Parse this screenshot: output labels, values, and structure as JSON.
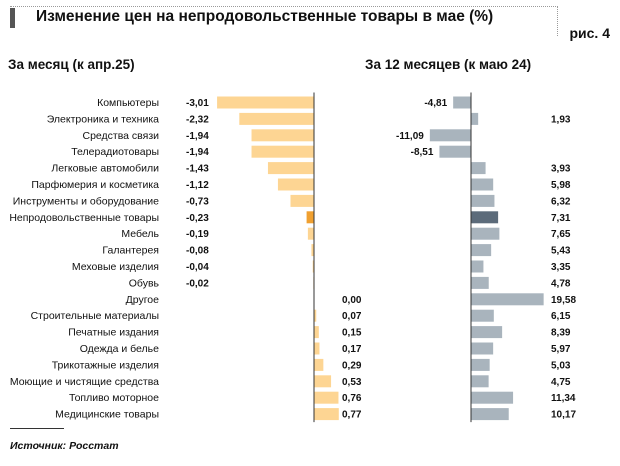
{
  "title": "Изменение цен на непродовольственные товары в мае (%)",
  "figure_label": "рис. 4",
  "source": "Источник: Росстат",
  "colors": {
    "monthly_bar": "#fdd593",
    "monthly_highlight": "#f0a030",
    "yearly_bar": "#a9b4bd",
    "yearly_highlight": "#5c6b7a",
    "axis": "#333333"
  },
  "chart_data": [
    {
      "type": "bar",
      "orientation": "horizontal",
      "title": "За месяц (к апр.25)",
      "highlight_category": "Непродовольственные товары",
      "categories": [
        "Компьютеры",
        "Электроника и техника",
        "Средства связи",
        "Телерадиотовары",
        "Легковые автомобили",
        "Парфюмерия и косметика",
        "Инструменты и оборудование",
        "Непродовольственные товары",
        "Мебель",
        "Галантерея",
        "Меховые изделия",
        "Обувь",
        "Другое",
        "Строительные материалы",
        "Печатные издания",
        "Одежда и белье",
        "Трикотажные изделия",
        "Моющие и чистящие средства",
        "Топливо моторное",
        "Медицинские товары"
      ],
      "values": [
        -3.01,
        -2.32,
        -1.94,
        -1.94,
        -1.43,
        -1.12,
        -0.73,
        -0.23,
        -0.19,
        -0.08,
        -0.04,
        -0.02,
        0.0,
        0.07,
        0.15,
        0.17,
        0.29,
        0.53,
        0.76,
        0.77
      ],
      "labels": [
        "-3,01",
        "-2,32",
        "-1,94",
        "-1,94",
        "-1,43",
        "-1,12",
        "-0,73",
        "-0,23",
        "-0,19",
        "-0,08",
        "-0,04",
        "-0,02",
        "0,00",
        "0,07",
        "0,15",
        "0,17",
        "0,29",
        "0,53",
        "0,76",
        "0,77"
      ]
    },
    {
      "type": "bar",
      "orientation": "horizontal",
      "title": "За 12 месяцев (к маю 24)",
      "highlight_category": "Непродовольственные товары",
      "categories": [
        "Компьютеры",
        "Электроника и техника",
        "Средства связи",
        "Телерадиотовары",
        "Легковые автомобили",
        "Парфюмерия и косметика",
        "Инструменты и оборудование",
        "Непродовольственные товары",
        "Мебель",
        "Галантерея",
        "Меховые изделия",
        "Обувь",
        "Другое",
        "Строительные материалы",
        "Печатные издания",
        "Одежда и белье",
        "Трикотажные изделия",
        "Моющие и чистящие средства",
        "Топливо моторное",
        "Медицинские товары"
      ],
      "values": [
        -4.81,
        1.93,
        -11.09,
        -8.51,
        3.93,
        5.98,
        6.32,
        7.31,
        7.65,
        5.43,
        3.35,
        4.78,
        19.58,
        6.15,
        8.39,
        5.97,
        5.03,
        4.75,
        11.34,
        10.17
      ],
      "labels": [
        "-4,81",
        "1,93",
        "-11,09",
        "-8,51",
        "3,93",
        "5,98",
        "6,32",
        "7,31",
        "7,65",
        "5,43",
        "3,35",
        "4,78",
        "19,58",
        "6,15",
        "8,39",
        "5,97",
        "5,03",
        "4,75",
        "11,34",
        "10,17"
      ]
    }
  ]
}
